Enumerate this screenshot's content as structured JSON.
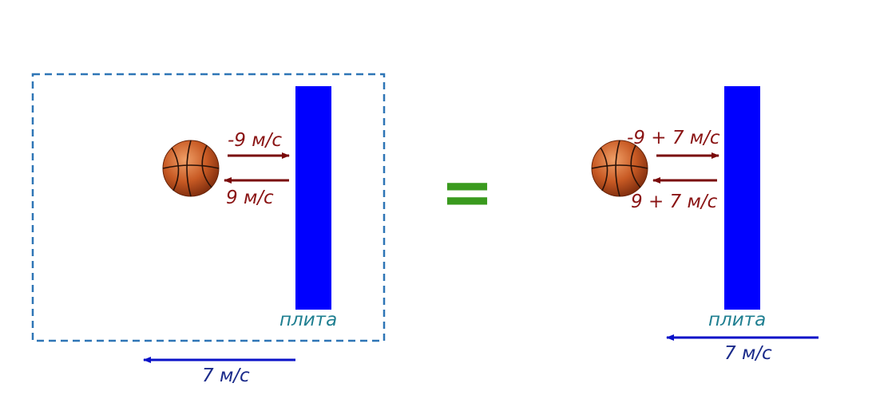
{
  "left": {
    "ball_in": "-9 м/с",
    "ball_out": "9 м/с",
    "plate": "плита",
    "frame_velocity": "7 м/с"
  },
  "equals": "=",
  "right": {
    "ball_in": "-9 + 7 м/с",
    "ball_out": "9 + 7 м/с",
    "plate": "плита",
    "plate_velocity": "7 м/с"
  }
}
